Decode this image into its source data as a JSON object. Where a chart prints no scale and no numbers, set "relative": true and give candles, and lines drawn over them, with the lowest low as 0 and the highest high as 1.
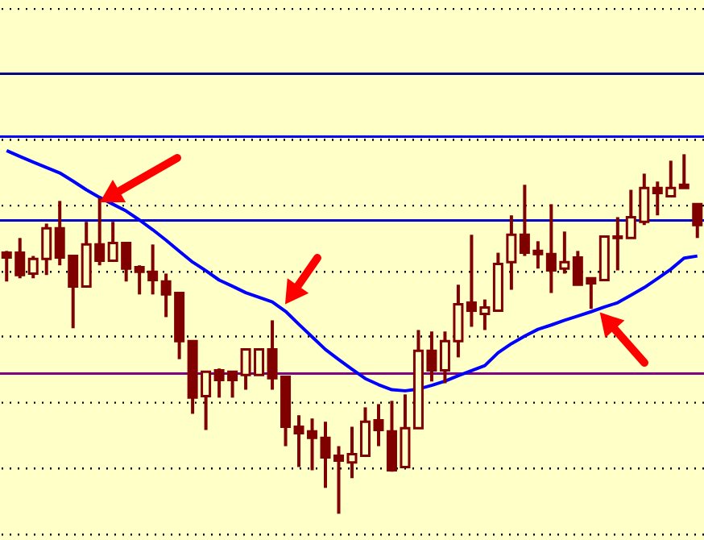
{
  "chart_data": {
    "type": "candlestick",
    "relative": true,
    "categories": [
      null,
      null,
      null,
      null,
      null,
      null,
      null,
      null,
      null,
      null,
      null,
      null,
      null,
      null,
      null,
      null,
      null,
      null,
      null,
      null,
      null,
      null,
      null,
      null,
      null,
      null,
      null,
      null,
      null,
      null,
      null,
      null,
      null,
      null,
      null,
      null,
      null,
      null,
      null,
      null,
      null,
      null,
      null,
      null,
      null,
      null,
      null,
      null,
      null,
      null,
      null,
      null,
      null
    ],
    "ohlc": [
      [
        0.726,
        0.731,
        0.646,
        0.713
      ],
      [
        0.726,
        0.767,
        0.655,
        0.664
      ],
      [
        0.668,
        0.717,
        0.655,
        0.709
      ],
      [
        0.709,
        0.807,
        0.664,
        0.794
      ],
      [
        0.794,
        0.87,
        0.691,
        0.713
      ],
      [
        0.717,
        0.717,
        0.516,
        0.632
      ],
      [
        0.632,
        0.812,
        0.632,
        0.749
      ],
      [
        0.749,
        0.879,
        0.691,
        0.704
      ],
      [
        0.704,
        0.812,
        0.704,
        0.753
      ],
      [
        0.753,
        0.753,
        0.646,
        0.682
      ],
      [
        0.686,
        0.691,
        0.61,
        0.673
      ],
      [
        0.673,
        0.749,
        0.61,
        0.65
      ],
      [
        0.646,
        0.668,
        0.547,
        0.61
      ],
      [
        0.614,
        0.614,
        0.43,
        0.48
      ],
      [
        0.48,
        0.48,
        0.278,
        0.323
      ],
      [
        0.327,
        0.395,
        0.233,
        0.395
      ],
      [
        0.399,
        0.404,
        0.323,
        0.372
      ],
      [
        0.395,
        0.395,
        0.323,
        0.372
      ],
      [
        0.386,
        0.457,
        0.345,
        0.457
      ],
      [
        0.386,
        0.457,
        0.386,
        0.457
      ],
      [
        0.457,
        0.538,
        0.345,
        0.377
      ],
      [
        0.381,
        0.381,
        0.188,
        0.242
      ],
      [
        0.242,
        0.274,
        0.13,
        0.224
      ],
      [
        0.229,
        0.265,
        0.121,
        0.211
      ],
      [
        0.211,
        0.256,
        0.072,
        0.157
      ],
      [
        0.161,
        0.188,
        0.0,
        0.148
      ],
      [
        0.143,
        0.242,
        0.099,
        0.166
      ],
      [
        0.161,
        0.296,
        0.161,
        0.256
      ],
      [
        0.26,
        0.305,
        0.188,
        0.233
      ],
      [
        0.229,
        0.314,
        0.117,
        0.121
      ],
      [
        0.13,
        0.332,
        0.13,
        0.238
      ],
      [
        0.238,
        0.511,
        0.238,
        0.453
      ],
      [
        0.453,
        0.507,
        0.368,
        0.399
      ],
      [
        0.399,
        0.507,
        0.363,
        0.48
      ],
      [
        0.48,
        0.637,
        0.435,
        0.583
      ],
      [
        0.587,
        0.776,
        0.52,
        0.565
      ],
      [
        0.556,
        0.596,
        0.511,
        0.574
      ],
      [
        0.565,
        0.726,
        0.565,
        0.695
      ],
      [
        0.7,
        0.83,
        0.623,
        0.776
      ],
      [
        0.776,
        0.915,
        0.717,
        0.726
      ],
      [
        0.731,
        0.758,
        0.682,
        0.722
      ],
      [
        0.722,
        0.861,
        0.614,
        0.677
      ],
      [
        0.682,
        0.785,
        0.668,
        0.7
      ],
      [
        0.713,
        0.731,
        0.637,
        0.637
      ],
      [
        0.655,
        0.655,
        0.57,
        0.641
      ],
      [
        0.65,
        0.771,
        0.65,
        0.771
      ],
      [
        0.767,
        0.825,
        0.677,
        0.771
      ],
      [
        0.767,
        0.901,
        0.767,
        0.825
      ],
      [
        0.812,
        0.946,
        0.803,
        0.906
      ],
      [
        0.906,
        0.924,
        0.83,
        0.892
      ],
      [
        0.883,
        0.982,
        0.883,
        0.906
      ],
      [
        0.915,
        1.0,
        0.906,
        0.906
      ],
      [
        0.861,
        0.861,
        0.767,
        0.803
      ]
    ],
    "series": [
      {
        "type": "line",
        "color": "#0000ff",
        "values": [
          1.01,
          0.994,
          0.978,
          0.963,
          0.948,
          0.925,
          0.901,
          0.88,
          0.861,
          0.842,
          0.817,
          0.79,
          0.761,
          0.73,
          0.7,
          0.676,
          0.65,
          0.633,
          0.615,
          0.602,
          0.589,
          0.563,
          0.527,
          0.492,
          0.457,
          0.429,
          0.402,
          0.376,
          0.359,
          0.345,
          0.342,
          0.347,
          0.357,
          0.369,
          0.384,
          0.398,
          0.412,
          0.448,
          0.473,
          0.494,
          0.513,
          0.525,
          0.538,
          0.55,
          0.562,
          0.575,
          0.587,
          0.608,
          0.629,
          0.654,
          0.68,
          0.711,
          0.717
        ]
      }
    ],
    "ref_lines": [
      {
        "axis": "y",
        "value": 1.404,
        "color": "#000000",
        "line_style": "dotted"
      },
      {
        "axis": "y",
        "value": 1.04,
        "color": "#000000",
        "line_style": "dotted"
      },
      {
        "axis": "y",
        "value": 0.857,
        "color": "#000000",
        "line_style": "dotted"
      },
      {
        "axis": "y",
        "value": 0.673,
        "color": "#000000",
        "line_style": "dotted"
      },
      {
        "axis": "y",
        "value": 0.493,
        "color": "#000000",
        "line_style": "dotted"
      },
      {
        "axis": "y",
        "value": 0.309,
        "color": "#000000",
        "line_style": "dotted"
      },
      {
        "axis": "y",
        "value": 0.126,
        "color": "#000000",
        "line_style": "dotted"
      },
      {
        "axis": "y",
        "value": -0.058,
        "color": "#000000",
        "line_style": "dotted"
      },
      {
        "axis": "y",
        "value": 1.224,
        "color": "#000080",
        "line_style": "solid"
      },
      {
        "axis": "y",
        "value": 1.049,
        "color": "#0000ff",
        "line_style": "solid"
      },
      {
        "axis": "y",
        "value": 0.816,
        "color": "#0000cc",
        "line_style": "solid"
      },
      {
        "axis": "y",
        "value": 0.39,
        "color": "#800080",
        "line_style": "solid"
      }
    ]
  }
}
